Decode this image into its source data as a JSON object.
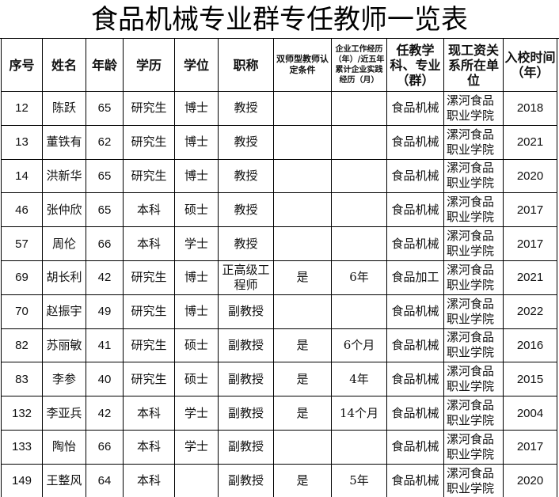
{
  "title": "食品机械专业群专任教师一览表",
  "headers": [
    "序号",
    "姓名",
    "年龄",
    "学历",
    "学位",
    "职称",
    "双师型教师认定条件",
    "企业工作经历（年）/近五年累计企业实践经历（月）",
    "任教学科、专业（群）",
    "现工资关系所在单位",
    "入校时间（年）"
  ],
  "rows": [
    [
      "12",
      "陈跃",
      "65",
      "研究生",
      "博士",
      "教授",
      "",
      "",
      "食品机械",
      "漯河食品职业学院",
      "2018"
    ],
    [
      "13",
      "董铁有",
      "62",
      "研究生",
      "博士",
      "教授",
      "",
      "",
      "食品机械",
      "漯河食品职业学院",
      "2021"
    ],
    [
      "14",
      "洪新华",
      "65",
      "研究生",
      "博士",
      "教授",
      "",
      "",
      "食品机械",
      "漯河食品职业学院",
      "2020"
    ],
    [
      "46",
      "张仲欣",
      "65",
      "本科",
      "硕士",
      "教授",
      "",
      "",
      "食品机械",
      "漯河食品职业学院",
      "2017"
    ],
    [
      "57",
      "周伦",
      "66",
      "本科",
      "学士",
      "教授",
      "",
      "",
      "食品机械",
      "漯河食品职业学院",
      "2017"
    ],
    [
      "69",
      "胡长利",
      "42",
      "研究生",
      "博士",
      "正高级工程师",
      "是",
      "6年",
      "食品加工",
      "漯河食品职业学院",
      "2021"
    ],
    [
      "70",
      "赵振宇",
      "49",
      "研究生",
      "博士",
      "副教授",
      "",
      "",
      "食品机械",
      "漯河食品职业学院",
      "2022"
    ],
    [
      "82",
      "苏丽敏",
      "41",
      "研究生",
      "硕士",
      "副教授",
      "是",
      "6个月",
      "食品机械",
      "漯河食品职业学院",
      "2016"
    ],
    [
      "83",
      "李参",
      "40",
      "研究生",
      "硕士",
      "副教授",
      "是",
      "4年",
      "食品机械",
      "漯河食品职业学院",
      "2015"
    ],
    [
      "132",
      "李亚兵",
      "42",
      "本科",
      "学士",
      "副教授",
      "是",
      "14个月",
      "食品机械",
      "漯河食品职业学院",
      "2004"
    ],
    [
      "133",
      "陶怡",
      "66",
      "本科",
      "学士",
      "副教授",
      "",
      "",
      "食品机械",
      "漯河食品职业学院",
      "2017"
    ],
    [
      "149",
      "王整风",
      "64",
      "本科",
      "",
      "副教授",
      "是",
      "5年",
      "食品机械",
      "漯河食品职业学院",
      "2020"
    ]
  ]
}
